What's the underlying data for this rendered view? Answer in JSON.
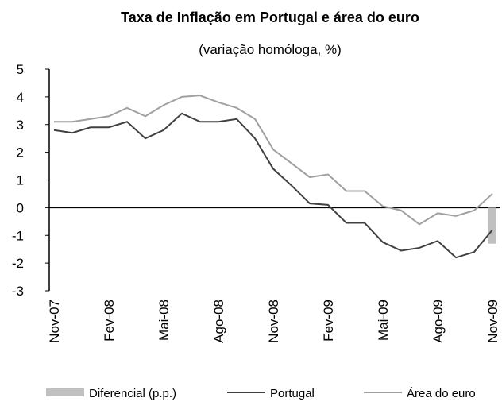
{
  "chart_data": {
    "type": "line",
    "title": "Taxa de Inflação em Portugal e área do euro",
    "subtitle": "(variação homóloga,  %)",
    "categories": [
      "Nov-07",
      null,
      null,
      "Fev-08",
      null,
      null,
      "Mai-08",
      null,
      null,
      "Ago-08",
      null,
      null,
      "Nov-08",
      null,
      null,
      "Fev-09",
      null,
      null,
      "Mai-09",
      null,
      null,
      "Ago-09",
      null,
      null,
      "Nov-09"
    ],
    "series": [
      {
        "name": "Diferencial (p.p.)",
        "type": "bar",
        "color": "#c0c0c0",
        "values": [
          null,
          null,
          null,
          null,
          null,
          null,
          null,
          null,
          null,
          null,
          null,
          null,
          null,
          null,
          null,
          null,
          null,
          null,
          null,
          null,
          null,
          null,
          null,
          null,
          -1.3
        ]
      },
      {
        "name": "Portugal",
        "type": "line",
        "color": "#404040",
        "values": [
          2.8,
          2.7,
          2.9,
          2.9,
          3.1,
          2.5,
          2.8,
          3.4,
          3.1,
          3.1,
          3.2,
          2.5,
          1.4,
          0.8,
          0.15,
          0.1,
          -0.55,
          -0.55,
          -1.25,
          -1.55,
          -1.45,
          -1.2,
          -1.8,
          -1.6,
          -0.8
        ]
      },
      {
        "name": "Área do euro",
        "type": "line",
        "color": "#a0a0a0",
        "values": [
          3.1,
          3.1,
          3.2,
          3.3,
          3.6,
          3.3,
          3.7,
          4.0,
          4.05,
          3.8,
          3.6,
          3.2,
          2.1,
          1.6,
          1.1,
          1.2,
          0.6,
          0.6,
          0.05,
          -0.1,
          -0.6,
          -0.2,
          -0.3,
          -0.1,
          0.5
        ]
      }
    ],
    "ylim": [
      -3,
      5
    ],
    "yticks": [
      -3,
      -2,
      -1,
      0,
      1,
      2,
      3,
      4,
      5
    ],
    "legend": "bottom"
  }
}
